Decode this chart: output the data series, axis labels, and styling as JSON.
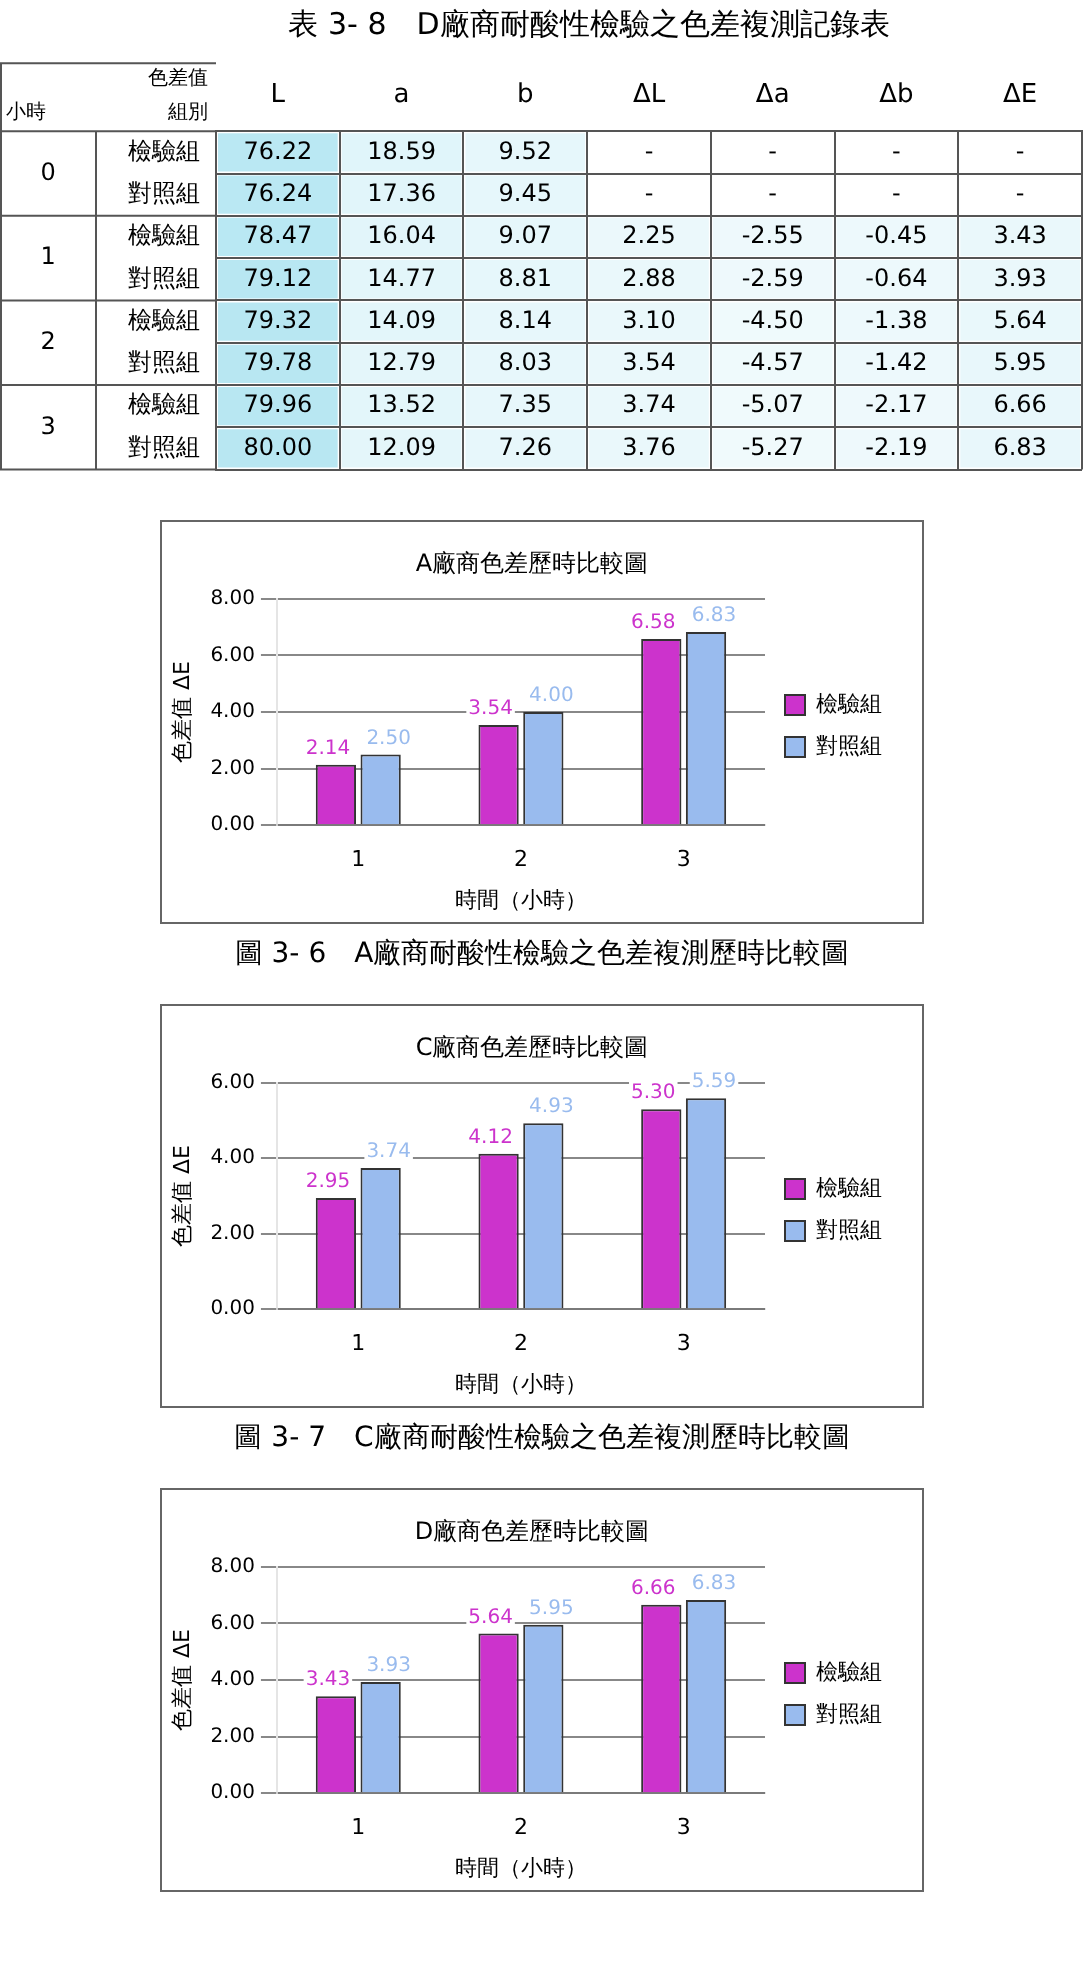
{
  "chart_data": [
    {
      "type": "heatmap",
      "title": "表 3- 8　D廠商耐酸性檢驗之色差複測記錄表",
      "annotations": [
        "色差值",
        "組別",
        "小時"
      ],
      "categories": [
        "L",
        "a",
        "b",
        "ΔL",
        "Δa",
        "Δb",
        "ΔE"
      ],
      "y_categories": [
        "檢驗組",
        "對照組",
        "檢驗組",
        "對照組",
        "檢驗組",
        "對照組",
        "檢驗組",
        "對照組"
      ],
      "y2_categories": [
        "0",
        null,
        "1",
        null,
        "2",
        null,
        "3",
        null
      ],
      "cells": [
        [
          76.22,
          18.59,
          9.52,
          null,
          null,
          null,
          null
        ],
        [
          76.24,
          17.36,
          9.45,
          null,
          null,
          null,
          null
        ],
        [
          78.47,
          16.04,
          9.07,
          2.25,
          -2.55,
          -0.45,
          3.43
        ],
        [
          79.12,
          14.77,
          8.81,
          2.88,
          -2.59,
          -0.64,
          3.93
        ],
        [
          79.32,
          14.09,
          8.14,
          3.1,
          -4.5,
          -1.38,
          5.64
        ],
        [
          79.78,
          12.79,
          8.03,
          3.54,
          -4.57,
          -1.42,
          5.95
        ],
        [
          79.96,
          13.52,
          7.35,
          3.74,
          -5.07,
          -2.17,
          6.66
        ],
        [
          80,
          12.09,
          7.26,
          3.76,
          -5.27,
          -2.19,
          6.83
        ]
      ],
      "cell_labels": [
        [
          "76.22",
          "18.59",
          "9.52",
          "-",
          "-",
          "-",
          "-"
        ],
        [
          "76.24",
          "17.36",
          "9.45",
          "-",
          "-",
          "-",
          "-"
        ],
        [
          "78.47",
          "16.04",
          "9.07",
          "2.25",
          "-2.55",
          "-0.45",
          "3.43"
        ],
        [
          "79.12",
          "14.77",
          "8.81",
          "2.88",
          "-2.59",
          "-0.64",
          "3.93"
        ],
        [
          "79.32",
          "14.09",
          "8.14",
          "3.10",
          "-4.50",
          "-1.38",
          "5.64"
        ],
        [
          "79.78",
          "12.79",
          "8.03",
          "3.54",
          "-4.57",
          "-1.42",
          "5.95"
        ],
        [
          "79.96",
          "13.52",
          "7.35",
          "3.74",
          "-5.07",
          "-2.17",
          "6.66"
        ],
        [
          "80.00",
          "12.09",
          "7.26",
          "3.76",
          "-5.27",
          "-2.19",
          "6.83"
        ]
      ],
      "grid": true
    },
    {
      "type": "bar",
      "title": "A廠商色差歷時比較圖",
      "xlabel": "時間（小時）",
      "ylabel": "色差值 ΔE",
      "categories": [
        "1",
        "2",
        "3"
      ],
      "series": [
        {
          "name": "檢驗組",
          "color": "#cc33cc",
          "values": [
            2.14,
            3.54,
            6.58
          ],
          "value_labels": [
            "2.14",
            "3.54",
            "6.58"
          ]
        },
        {
          "name": "對照組",
          "color": "#99bbee",
          "values": [
            2.5,
            4.0,
            6.83
          ],
          "value_labels": [
            "2.50",
            "4.00",
            "6.83"
          ]
        }
      ],
      "ylim": [
        0,
        8
      ],
      "yticks": [
        {
          "value": 0,
          "label": "0.00"
        },
        {
          "value": 2,
          "label": "2.00"
        },
        {
          "value": 4,
          "label": "4.00"
        },
        {
          "value": 6,
          "label": "6.00"
        },
        {
          "value": 8,
          "label": "8.00"
        }
      ],
      "grid": "y",
      "legend": "right",
      "annotations": [
        "圖 3- 6　A廠商耐酸性檢驗之色差複測歷時比較圖"
      ]
    },
    {
      "type": "bar",
      "title": "C廠商色差歷時比較圖",
      "xlabel": "時間（小時）",
      "ylabel": "色差值 ΔE",
      "categories": [
        "1",
        "2",
        "3"
      ],
      "series": [
        {
          "name": "檢驗組",
          "color": "#cc33cc",
          "values": [
            2.95,
            4.12,
            5.3
          ],
          "value_labels": [
            "2.95",
            "4.12",
            "5.30"
          ]
        },
        {
          "name": "對照組",
          "color": "#99bbee",
          "values": [
            3.74,
            4.93,
            5.59
          ],
          "value_labels": [
            "3.74",
            "4.93",
            "5.59"
          ]
        }
      ],
      "ylim": [
        0,
        6
      ],
      "yticks": [
        {
          "value": 0,
          "label": "0.00"
        },
        {
          "value": 2,
          "label": "2.00"
        },
        {
          "value": 4,
          "label": "4.00"
        },
        {
          "value": 6,
          "label": "6.00"
        }
      ],
      "grid": "y",
      "legend": "right",
      "annotations": [
        "圖 3- 7　C廠商耐酸性檢驗之色差複測歷時比較圖"
      ]
    },
    {
      "type": "bar",
      "title": "D廠商色差歷時比較圖",
      "xlabel": "時間（小時）",
      "ylabel": "色差值 ΔE",
      "categories": [
        "1",
        "2",
        "3"
      ],
      "series": [
        {
          "name": "檢驗組",
          "color": "#cc33cc",
          "values": [
            3.43,
            5.64,
            6.66
          ],
          "value_labels": [
            "3.43",
            "5.64",
            "6.66"
          ]
        },
        {
          "name": "對照組",
          "color": "#99bbee",
          "values": [
            3.93,
            5.95,
            6.83
          ],
          "value_labels": [
            "3.93",
            "5.95",
            "6.83"
          ]
        }
      ],
      "ylim": [
        0,
        8
      ],
      "yticks": [
        {
          "value": 0,
          "label": "0.00"
        },
        {
          "value": 2,
          "label": "2.00"
        },
        {
          "value": 4,
          "label": "4.00"
        },
        {
          "value": 6,
          "label": "6.00"
        },
        {
          "value": 8,
          "label": "8.00"
        }
      ],
      "grid": "y",
      "legend": "right"
    }
  ]
}
